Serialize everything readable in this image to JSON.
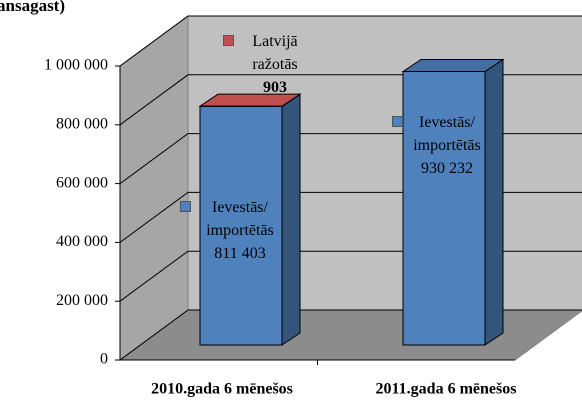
{
  "chart_data": {
    "type": "bar3d_stacked",
    "title": "ansagast)",
    "categories": [
      "2010.gada 6 mēnešos",
      "2011.gada 6 mēnešos"
    ],
    "series": [
      {
        "name": "Ievestās/ importētās",
        "color": "#4f81bd",
        "values": [
          811403,
          930232
        ],
        "value_labels": [
          "811 403",
          "930 232"
        ]
      },
      {
        "name": "Latvijā ražotās",
        "color": "#c0504d",
        "values": [
          903,
          null
        ],
        "value_labels": [
          "903",
          null
        ]
      }
    ],
    "ylim": [
      0,
      1000000
    ],
    "yticks": [
      0,
      {
        "value": 200000,
        "label": "200 000"
      },
      {
        "value": 400000,
        "label": "400 000"
      },
      {
        "value": 600000,
        "label": "600 000"
      },
      {
        "value": 800000,
        "label": "800 000"
      },
      {
        "value": 1000000,
        "label": "1 000 000"
      }
    ],
    "grid": true
  }
}
